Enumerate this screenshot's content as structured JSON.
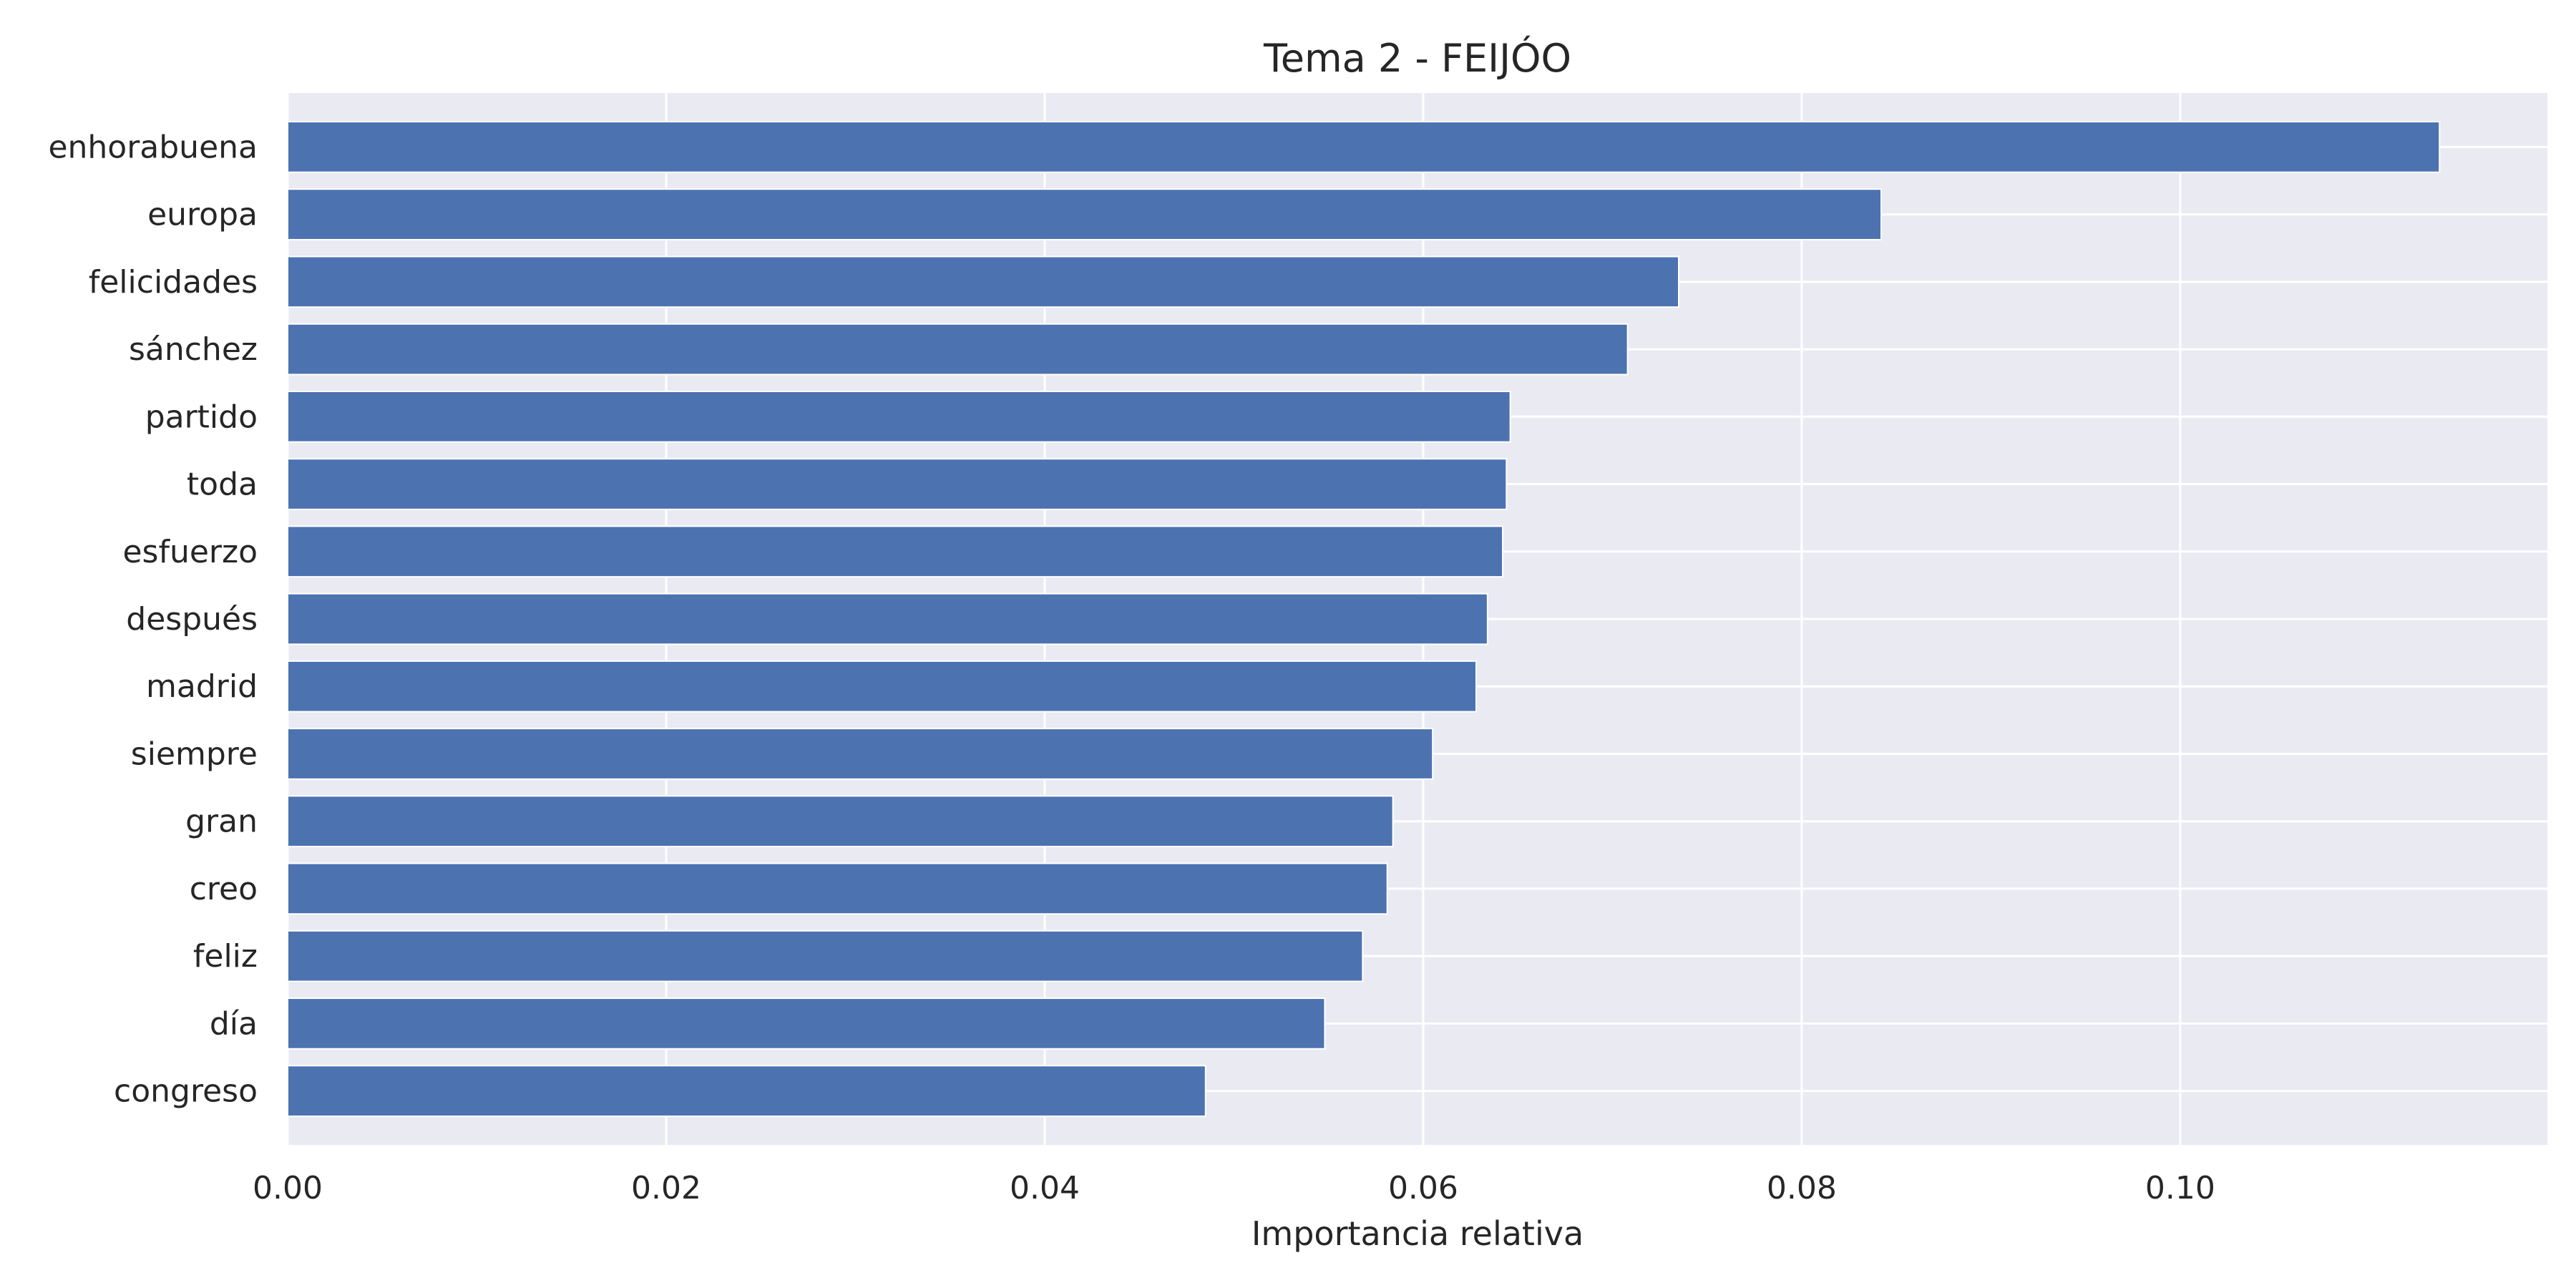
{
  "chart_data": {
    "type": "bar",
    "orientation": "horizontal",
    "title": "Tema 2 - FEIJÓO",
    "xlabel": "Importancia relativa",
    "ylabel": "",
    "categories": [
      "enhorabuena",
      "europa",
      "felicidades",
      "sánchez",
      "partido",
      "toda",
      "esfuerzo",
      "después",
      "madrid",
      "siempre",
      "gran",
      "creo",
      "feliz",
      "día",
      "congreso"
    ],
    "values": [
      0.1137,
      0.0842,
      0.0735,
      0.0708,
      0.0646,
      0.0644,
      0.0642,
      0.0634,
      0.0628,
      0.0605,
      0.0584,
      0.0581,
      0.0568,
      0.0548,
      0.0485
    ],
    "xlim": [
      0.0,
      0.1194
    ],
    "xticks": [
      0.0,
      0.02,
      0.04,
      0.06,
      0.08,
      0.1
    ],
    "xtick_labels": [
      "0.00",
      "0.02",
      "0.04",
      "0.06",
      "0.08",
      "0.10"
    ],
    "grid": true,
    "colors": {
      "bar": "#4c72b0",
      "background": "#eaeaf2",
      "grid": "#ffffff"
    }
  }
}
